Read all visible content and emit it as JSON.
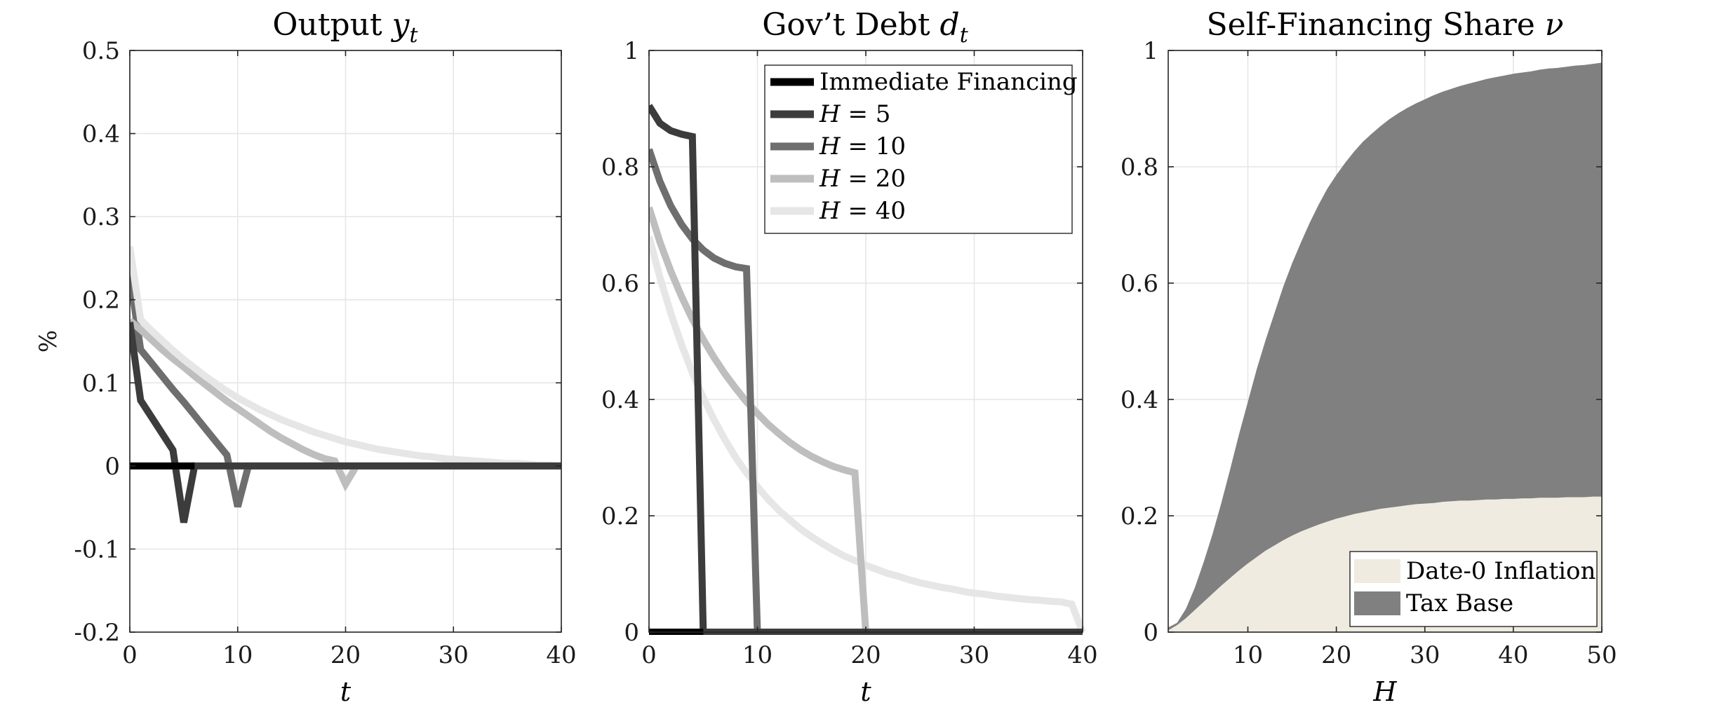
{
  "chart_data": [
    {
      "type": "line",
      "title": "Output y_t",
      "title_parts": [
        "Output ",
        "y",
        "t"
      ],
      "xlabel": "t",
      "ylabel": "%",
      "xlim": [
        0,
        40
      ],
      "ylim": [
        -0.2,
        0.5
      ],
      "xticks": [
        0,
        10,
        20,
        30,
        40
      ],
      "xtick_labels": [
        "0",
        "10",
        "20",
        "30",
        "40"
      ],
      "yticks": [
        -0.2,
        -0.1,
        0,
        0.1,
        0.2,
        0.3,
        0.4,
        0.5
      ],
      "ytick_labels": [
        "-0.2",
        "-0.1",
        "0",
        "0.1",
        "0.2",
        "0.3",
        "0.4",
        "0.5"
      ],
      "grid": true,
      "series": [
        {
          "color": "#6e6e6e",
          "x": [
            0,
            1,
            2,
            3,
            4,
            5,
            6,
            7,
            8,
            9,
            10,
            11,
            12,
            13,
            14,
            15,
            16,
            17,
            18,
            19,
            20,
            21,
            22,
            23,
            24,
            25,
            26,
            27,
            28,
            29,
            30,
            31,
            32,
            33,
            34,
            35,
            36,
            37,
            38,
            39,
            40
          ],
          "y": [
            0.231,
            0.14,
            0.124,
            0.108,
            0.092,
            0.077,
            0.061,
            0.045,
            0.029,
            0.013,
            -0.049,
            0,
            0,
            0,
            0,
            0,
            0,
            0,
            0,
            0,
            0,
            0,
            0,
            0,
            0,
            0,
            0,
            0,
            0,
            0,
            0,
            0,
            0,
            0,
            0,
            0,
            0,
            0,
            0,
            0,
            0
          ]
        },
        {
          "color": "#bebebe",
          "x": [
            0,
            1,
            2,
            3,
            4,
            5,
            6,
            7,
            8,
            9,
            10,
            11,
            12,
            13,
            14,
            15,
            16,
            17,
            18,
            19,
            20,
            21,
            22,
            23,
            24,
            25,
            26,
            27,
            28,
            29,
            30,
            31,
            32,
            33,
            34,
            35,
            36,
            37,
            38,
            39,
            40
          ],
          "y": [
            0.175,
            0.164,
            0.152,
            0.14,
            0.129,
            0.119,
            0.108,
            0.098,
            0.088,
            0.078,
            0.069,
            0.06,
            0.051,
            0.042,
            0.034,
            0.027,
            0.02,
            0.014,
            0.009,
            0.006,
            -0.022,
            0,
            0,
            0,
            0,
            0,
            0,
            0,
            0,
            0,
            0,
            0,
            0,
            0,
            0,
            0,
            0,
            0,
            0,
            0,
            0
          ]
        },
        {
          "color": "#e6e6e6",
          "x": [
            0,
            1,
            2,
            3,
            4,
            5,
            6,
            7,
            8,
            9,
            10,
            11,
            12,
            13,
            14,
            15,
            16,
            17,
            18,
            19,
            20,
            21,
            22,
            23,
            24,
            25,
            26,
            27,
            28,
            29,
            30,
            31,
            32,
            33,
            34,
            35,
            36,
            37,
            38,
            39,
            40
          ],
          "y": [
            0.264,
            0.176,
            0.163,
            0.151,
            0.139,
            0.128,
            0.118,
            0.108,
            0.099,
            0.09,
            0.082,
            0.075,
            0.068,
            0.062,
            0.056,
            0.051,
            0.046,
            0.041,
            0.037,
            0.033,
            0.029,
            0.026,
            0.023,
            0.02,
            0.018,
            0.016,
            0.014,
            0.012,
            0.011,
            0.009,
            0.008,
            0.007,
            0.006,
            0.005,
            0.004,
            0.003,
            0.003,
            0.002,
            0.001,
            0.001,
            0.0
          ]
        },
        {
          "color": "#3c3c3c",
          "x": [
            0,
            1,
            2,
            3,
            4,
            5,
            6,
            7,
            8,
            9,
            10,
            11,
            12,
            13,
            14,
            15,
            16,
            17,
            18,
            19,
            20,
            21,
            22,
            23,
            24,
            25,
            26,
            27,
            28,
            29,
            30,
            31,
            32,
            33,
            34,
            35,
            36,
            37,
            38,
            39,
            40
          ],
          "y": [
            0.173,
            0.079,
            0.059,
            0.039,
            0.019,
            -0.068,
            0,
            0,
            0,
            0,
            0,
            0,
            0,
            0,
            0,
            0,
            0,
            0,
            0,
            0,
            0,
            0,
            0,
            0,
            0,
            0,
            0,
            0,
            0,
            0,
            0,
            0,
            0,
            0,
            0,
            0,
            0,
            0,
            0,
            0,
            0
          ]
        },
        {
          "color": "#000000",
          "x": [
            0,
            6
          ],
          "y": [
            0,
            0
          ]
        }
      ]
    },
    {
      "type": "line",
      "title": "Gov't Debt d_t",
      "title_parts": [
        "Gov’t Debt ",
        "d",
        "t"
      ],
      "xlabel": "t",
      "xlim": [
        0,
        40
      ],
      "ylim": [
        0,
        1
      ],
      "xticks": [
        0,
        10,
        20,
        30,
        40
      ],
      "xtick_labels": [
        "0",
        "10",
        "20",
        "30",
        "40"
      ],
      "yticks": [
        0,
        0.2,
        0.4,
        0.6,
        0.8,
        1
      ],
      "ytick_labels": [
        "0",
        "0.2",
        "0.4",
        "0.6",
        "0.8",
        "1"
      ],
      "grid": true,
      "legend_position": "top-right",
      "legend": [
        {
          "label": "Immediate Financing",
          "color": "#000000"
        },
        {
          "label_var": "H",
          "label_rest": " = 5",
          "color": "#3c3c3c"
        },
        {
          "label_var": "H",
          "label_rest": " = 10",
          "color": "#6e6e6e"
        },
        {
          "label_var": "H",
          "label_rest": " = 20",
          "color": "#bebebe"
        },
        {
          "label_var": "H",
          "label_rest": " = 40",
          "color": "#e6e6e6"
        }
      ],
      "series": [
        {
          "name": "H = 40",
          "color": "#e6e6e6",
          "x": [
            0,
            1,
            2,
            3,
            4,
            5,
            6,
            7,
            8,
            9,
            10,
            11,
            12,
            13,
            14,
            15,
            16,
            17,
            18,
            19,
            20,
            21,
            22,
            23,
            24,
            25,
            26,
            27,
            28,
            29,
            30,
            31,
            32,
            33,
            34,
            35,
            36,
            37,
            38,
            39,
            40
          ],
          "y": [
            0.68,
            0.61,
            0.549,
            0.494,
            0.446,
            0.403,
            0.365,
            0.331,
            0.3,
            0.274,
            0.25,
            0.228,
            0.209,
            0.193,
            0.177,
            0.164,
            0.152,
            0.141,
            0.131,
            0.123,
            0.115,
            0.108,
            0.101,
            0.096,
            0.09,
            0.085,
            0.081,
            0.077,
            0.074,
            0.07,
            0.067,
            0.065,
            0.062,
            0.06,
            0.058,
            0.056,
            0.055,
            0.053,
            0.052,
            0.048,
            0
          ]
        },
        {
          "name": "H = 20",
          "color": "#bebebe",
          "x": [
            0,
            1,
            2,
            3,
            4,
            5,
            6,
            7,
            8,
            9,
            10,
            11,
            12,
            13,
            14,
            15,
            16,
            17,
            18,
            19,
            20,
            40
          ],
          "y": [
            0.73,
            0.671,
            0.621,
            0.577,
            0.538,
            0.503,
            0.472,
            0.444,
            0.419,
            0.396,
            0.376,
            0.357,
            0.341,
            0.326,
            0.313,
            0.302,
            0.293,
            0.285,
            0.279,
            0.274,
            0,
            0
          ]
        },
        {
          "name": "H = 10",
          "color": "#6e6e6e",
          "x": [
            0,
            1,
            2,
            3,
            4,
            5,
            6,
            7,
            8,
            9,
            10,
            40
          ],
          "y": [
            0.83,
            0.775,
            0.733,
            0.701,
            0.676,
            0.657,
            0.643,
            0.634,
            0.628,
            0.625,
            0,
            0
          ]
        },
        {
          "name": "H = 5",
          "color": "#3c3c3c",
          "x": [
            0,
            1,
            2,
            3,
            4,
            5,
            40
          ],
          "y": [
            0.905,
            0.875,
            0.862,
            0.856,
            0.852,
            0,
            0
          ]
        },
        {
          "name": "Immediate Financing",
          "color": "#000000",
          "x": [
            0,
            5
          ],
          "y": [
            0,
            0
          ]
        }
      ]
    },
    {
      "type": "area",
      "title": "Self-Financing Share ν",
      "title_parts": [
        "Self-Financing Share ",
        "ν",
        ""
      ],
      "xlabel": "H",
      "xlim": [
        1,
        50
      ],
      "ylim": [
        0,
        1
      ],
      "xticks": [
        10,
        20,
        30,
        40,
        50
      ],
      "xtick_labels": [
        "10",
        "20",
        "30",
        "40",
        "50"
      ],
      "yticks": [
        0,
        0.2,
        0.4,
        0.6,
        0.8,
        1
      ],
      "ytick_labels": [
        "0",
        "0.2",
        "0.4",
        "0.6",
        "0.8",
        "1"
      ],
      "grid": true,
      "legend_position": "bottom-right",
      "legend": [
        {
          "label": "Date-0 Inflation",
          "color": "#efebe0"
        },
        {
          "label": "Tax Base",
          "color": "#808080"
        }
      ],
      "x": [
        1,
        2,
        3,
        4,
        5,
        6,
        7,
        8,
        9,
        10,
        11,
        12,
        13,
        14,
        15,
        16,
        17,
        18,
        19,
        20,
        21,
        22,
        23,
        24,
        25,
        26,
        27,
        28,
        29,
        30,
        31,
        32,
        33,
        34,
        35,
        36,
        37,
        38,
        39,
        40,
        41,
        42,
        43,
        44,
        45,
        46,
        47,
        48,
        49,
        50
      ],
      "series": [
        {
          "name": "Date-0 Inflation",
          "color": "#efebe0",
          "values": [
            0.003,
            0.012,
            0.024,
            0.038,
            0.052,
            0.066,
            0.08,
            0.093,
            0.106,
            0.118,
            0.129,
            0.14,
            0.149,
            0.158,
            0.166,
            0.173,
            0.179,
            0.185,
            0.19,
            0.195,
            0.199,
            0.203,
            0.206,
            0.209,
            0.212,
            0.214,
            0.216,
            0.218,
            0.22,
            0.221,
            0.222,
            0.224,
            0.225,
            0.226,
            0.226,
            0.227,
            0.228,
            0.228,
            0.229,
            0.229,
            0.23,
            0.23,
            0.231,
            0.231,
            0.231,
            0.232,
            0.232,
            0.232,
            0.233,
            0.233
          ]
        },
        {
          "name": "Tax Base",
          "color": "#808080",
          "values": [
            0.008,
            0.016,
            0.04,
            0.076,
            0.12,
            0.168,
            0.222,
            0.28,
            0.34,
            0.396,
            0.452,
            0.502,
            0.548,
            0.594,
            0.634,
            0.67,
            0.704,
            0.735,
            0.763,
            0.786,
            0.807,
            0.826,
            0.843,
            0.857,
            0.87,
            0.882,
            0.892,
            0.901,
            0.909,
            0.916,
            0.923,
            0.929,
            0.934,
            0.939,
            0.943,
            0.947,
            0.951,
            0.954,
            0.957,
            0.96,
            0.962,
            0.964,
            0.967,
            0.969,
            0.97,
            0.972,
            0.974,
            0.975,
            0.977,
            0.979
          ]
        }
      ]
    }
  ]
}
